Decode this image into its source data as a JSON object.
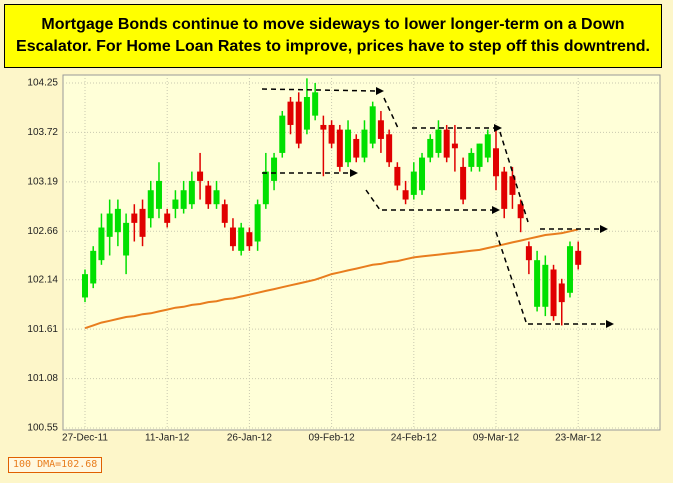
{
  "chart_data": {
    "type": "candlestick",
    "title": [
      "Mortgage Bonds continue to move sideways to lower longer-term on a Down",
      "Escalator.  For Home Loan Rates to improve, prices have to step off this downtrend."
    ],
    "categories": [
      "27-Dec-11",
      null,
      null,
      null,
      null,
      null,
      null,
      null,
      null,
      null,
      "11-Jan-12",
      null,
      null,
      null,
      null,
      null,
      null,
      null,
      null,
      null,
      "26-Jan-12",
      null,
      null,
      null,
      null,
      null,
      null,
      null,
      null,
      null,
      "09-Feb-12",
      null,
      null,
      null,
      null,
      null,
      null,
      null,
      null,
      null,
      "24-Feb-12",
      null,
      null,
      null,
      null,
      null,
      null,
      null,
      null,
      null,
      "09-Mar-12",
      null,
      null,
      null,
      null,
      null,
      null,
      null,
      null,
      null,
      "23-Mar-12"
    ],
    "open": [
      101.95,
      102.1,
      102.35,
      102.6,
      102.65,
      102.4,
      102.85,
      102.9,
      102.8,
      102.9,
      102.85,
      102.9,
      102.9,
      102.95,
      103.3,
      103.15,
      102.95,
      102.95,
      102.7,
      102.45,
      102.65,
      102.55,
      102.95,
      103.2,
      103.5,
      104.05,
      104.05,
      103.75,
      103.9,
      103.8,
      103.8,
      103.75,
      103.4,
      103.65,
      103.45,
      103.6,
      103.85,
      103.7,
      103.35,
      103.1,
      103.05,
      103.1,
      103.45,
      103.5,
      103.75,
      103.6,
      103.35,
      103.35,
      103.35,
      103.45,
      103.55,
      103.3,
      103.25,
      102.95,
      102.5,
      101.85,
      101.85,
      102.25,
      102.1,
      102.0,
      102.45
    ],
    "high": [
      102.25,
      102.5,
      102.85,
      103.0,
      103.0,
      102.85,
      102.95,
      103.0,
      103.2,
      103.4,
      102.9,
      103.1,
      103.2,
      103.3,
      103.5,
      103.2,
      103.2,
      103.0,
      102.8,
      102.75,
      102.7,
      103.0,
      103.5,
      103.5,
      103.95,
      104.1,
      104.15,
      104.3,
      104.25,
      103.9,
      103.85,
      103.8,
      103.85,
      103.7,
      103.85,
      104.05,
      103.95,
      103.75,
      103.4,
      103.2,
      103.4,
      103.5,
      103.7,
      103.85,
      103.8,
      103.8,
      103.45,
      103.55,
      103.6,
      103.75,
      103.75,
      103.35,
      103.35,
      103.0,
      102.55,
      102.45,
      102.4,
      102.3,
      102.15,
      102.55,
      102.55
    ],
    "low": [
      101.9,
      102.05,
      102.3,
      102.4,
      102.5,
      102.2,
      102.55,
      102.5,
      102.7,
      102.8,
      102.7,
      102.8,
      102.85,
      102.9,
      103.0,
      102.9,
      102.9,
      102.7,
      102.45,
      102.4,
      102.45,
      102.45,
      102.9,
      103.1,
      103.45,
      103.7,
      103.55,
      103.7,
      103.85,
      103.25,
      103.55,
      103.3,
      103.35,
      103.4,
      103.4,
      103.55,
      103.5,
      103.35,
      103.1,
      102.95,
      103.0,
      103.05,
      103.4,
      103.45,
      103.4,
      103.3,
      102.95,
      103.3,
      103.3,
      103.4,
      103.1,
      102.8,
      102.9,
      102.65,
      102.2,
      101.8,
      101.75,
      101.7,
      101.65,
      101.95,
      102.25
    ],
    "close": [
      102.2,
      102.45,
      102.7,
      102.85,
      102.9,
      102.75,
      102.75,
      102.6,
      103.1,
      103.2,
      102.75,
      103.0,
      103.1,
      103.2,
      103.2,
      102.95,
      103.1,
      102.75,
      102.5,
      102.7,
      102.5,
      102.95,
      103.3,
      103.45,
      103.9,
      103.8,
      103.6,
      104.1,
      104.15,
      103.75,
      103.6,
      103.35,
      103.75,
      103.45,
      103.75,
      104.0,
      103.65,
      103.4,
      103.15,
      103.0,
      103.3,
      103.45,
      103.65,
      103.75,
      103.45,
      103.55,
      103.0,
      103.5,
      103.6,
      103.7,
      103.25,
      102.9,
      103.05,
      102.8,
      102.35,
      102.35,
      102.3,
      101.75,
      101.9,
      102.5,
      102.3
    ],
    "up_color": "#00e000",
    "down_color": "#e00000",
    "series": [
      {
        "name": "100 DMA=102.68",
        "color": "#e87d1e",
        "values": [
          101.62,
          101.65,
          101.68,
          101.7,
          101.72,
          101.74,
          101.75,
          101.77,
          101.78,
          101.8,
          101.82,
          101.84,
          101.85,
          101.87,
          101.88,
          101.9,
          101.91,
          101.93,
          101.94,
          101.96,
          101.98,
          102.0,
          102.02,
          102.04,
          102.06,
          102.08,
          102.1,
          102.12,
          102.14,
          102.17,
          102.2,
          102.22,
          102.24,
          102.26,
          102.28,
          102.3,
          102.31,
          102.33,
          102.34,
          102.36,
          102.38,
          102.39,
          102.4,
          102.41,
          102.42,
          102.43,
          102.44,
          102.45,
          102.46,
          102.48,
          102.5,
          102.52,
          102.54,
          102.56,
          102.58,
          102.6,
          102.62,
          102.63,
          102.64,
          102.66,
          102.68
        ]
      }
    ],
    "ylim": [
      100.55,
      104.25
    ],
    "yticks": [
      100.55,
      101.08,
      101.61,
      102.14,
      102.66,
      103.19,
      103.72,
      104.25
    ],
    "grid": true
  }
}
